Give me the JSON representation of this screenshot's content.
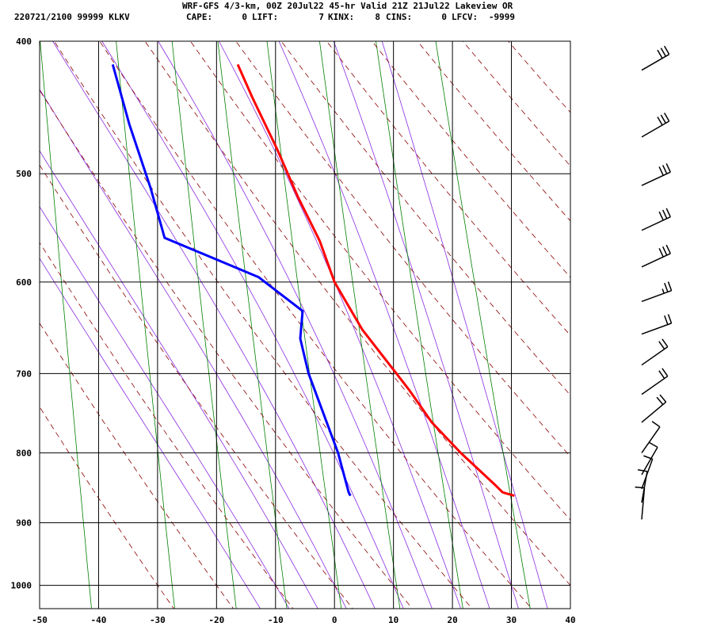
{
  "header": {
    "title": "WRF-GFS 4/3-km, 00Z 20Jul22 45-hr Valid 21Z 21Jul22 Lakeview OR",
    "station": "220721/2100 99999  KLKV",
    "indices": [
      {
        "label": "CAPE:",
        "value": "0"
      },
      {
        "label": "LIFT:",
        "value": "7"
      },
      {
        "label": "KINX:",
        "value": "8"
      },
      {
        "label": "CINS:",
        "value": "0"
      },
      {
        "label": "LFCV:",
        "value": "-9999"
      }
    ]
  },
  "chart_data": {
    "type": "line",
    "chart_kind": "skew-t log-p sounding",
    "x_axis": {
      "ticks": [
        -50,
        -40,
        -30,
        -20,
        -10,
        0,
        10,
        20,
        30,
        40
      ],
      "range": [
        -50,
        40
      ],
      "units": "degC"
    },
    "y_axis": {
      "ticks": [
        400,
        500,
        600,
        700,
        800,
        900,
        1000
      ],
      "range": [
        400,
        1040
      ],
      "scale": "log",
      "units": "hPa"
    },
    "grid": true,
    "colors": {
      "temperature": "#ff0000",
      "dewpoint": "#0000ff",
      "dry_adiabat": "#8b0000",
      "mixing_ratio": "#008000",
      "moist_adiabat": "#8a2be2",
      "grid": "#000000"
    },
    "series": [
      {
        "key": "temperature",
        "points": [
          {
            "p": 860,
            "t": 30.5
          },
          {
            "p": 855,
            "t": 28.5
          },
          {
            "p": 845,
            "t": 27.3
          },
          {
            "p": 800,
            "t": 21.4
          },
          {
            "p": 760,
            "t": 16.5
          },
          {
            "p": 720,
            "t": 12.7
          },
          {
            "p": 700,
            "t": 10.5
          },
          {
            "p": 650,
            "t": 4.7
          },
          {
            "p": 600,
            "t": 0.0
          },
          {
            "p": 560,
            "t": -2.5
          },
          {
            "p": 520,
            "t": -6.2
          },
          {
            "p": 480,
            "t": -9.7
          },
          {
            "p": 440,
            "t": -13.9
          },
          {
            "p": 416,
            "t": -16.4
          }
        ]
      },
      {
        "key": "dewpoint",
        "points": [
          {
            "p": 860,
            "t": 2.7
          },
          {
            "p": 855,
            "t": 2.4
          },
          {
            "p": 800,
            "t": 0.6
          },
          {
            "p": 700,
            "t": -4.4
          },
          {
            "p": 660,
            "t": -5.8
          },
          {
            "p": 630,
            "t": -5.4
          },
          {
            "p": 595,
            "t": -12.9
          },
          {
            "p": 557,
            "t": -28.8
          },
          {
            "p": 512,
            "t": -31.2
          },
          {
            "p": 460,
            "t": -34.8
          },
          {
            "p": 416,
            "t": -37.6
          }
        ]
      }
    ],
    "dry_adiabats": [
      -30,
      -20,
      -10,
      0,
      10,
      20,
      30,
      40,
      50,
      60,
      70,
      80,
      90,
      100,
      110,
      120
    ],
    "mixing_ratio_lines": [
      0.1,
      0.4,
      1,
      2,
      4,
      8,
      16,
      32
    ],
    "moist_adiabats": [
      -15,
      -10,
      -5,
      0,
      5,
      10,
      15,
      20,
      25,
      30,
      35
    ],
    "wind_barbs": [
      {
        "p": 420,
        "dir": 240,
        "spd": 30
      },
      {
        "p": 470,
        "dir": 240,
        "spd": 30
      },
      {
        "p": 510,
        "dir": 245,
        "spd": 30
      },
      {
        "p": 550,
        "dir": 245,
        "spd": 30
      },
      {
        "p": 585,
        "dir": 245,
        "spd": 30
      },
      {
        "p": 620,
        "dir": 250,
        "spd": 25
      },
      {
        "p": 655,
        "dir": 250,
        "spd": 20
      },
      {
        "p": 690,
        "dir": 235,
        "spd": 20
      },
      {
        "p": 725,
        "dir": 235,
        "spd": 20
      },
      {
        "p": 760,
        "dir": 230,
        "spd": 20
      },
      {
        "p": 800,
        "dir": 215,
        "spd": 10
      },
      {
        "p": 830,
        "dir": 210,
        "spd": 10
      },
      {
        "p": 850,
        "dir": 200,
        "spd": 10
      },
      {
        "p": 870,
        "dir": 190,
        "spd": 10
      },
      {
        "p": 895,
        "dir": 185,
        "spd": 10
      }
    ]
  }
}
